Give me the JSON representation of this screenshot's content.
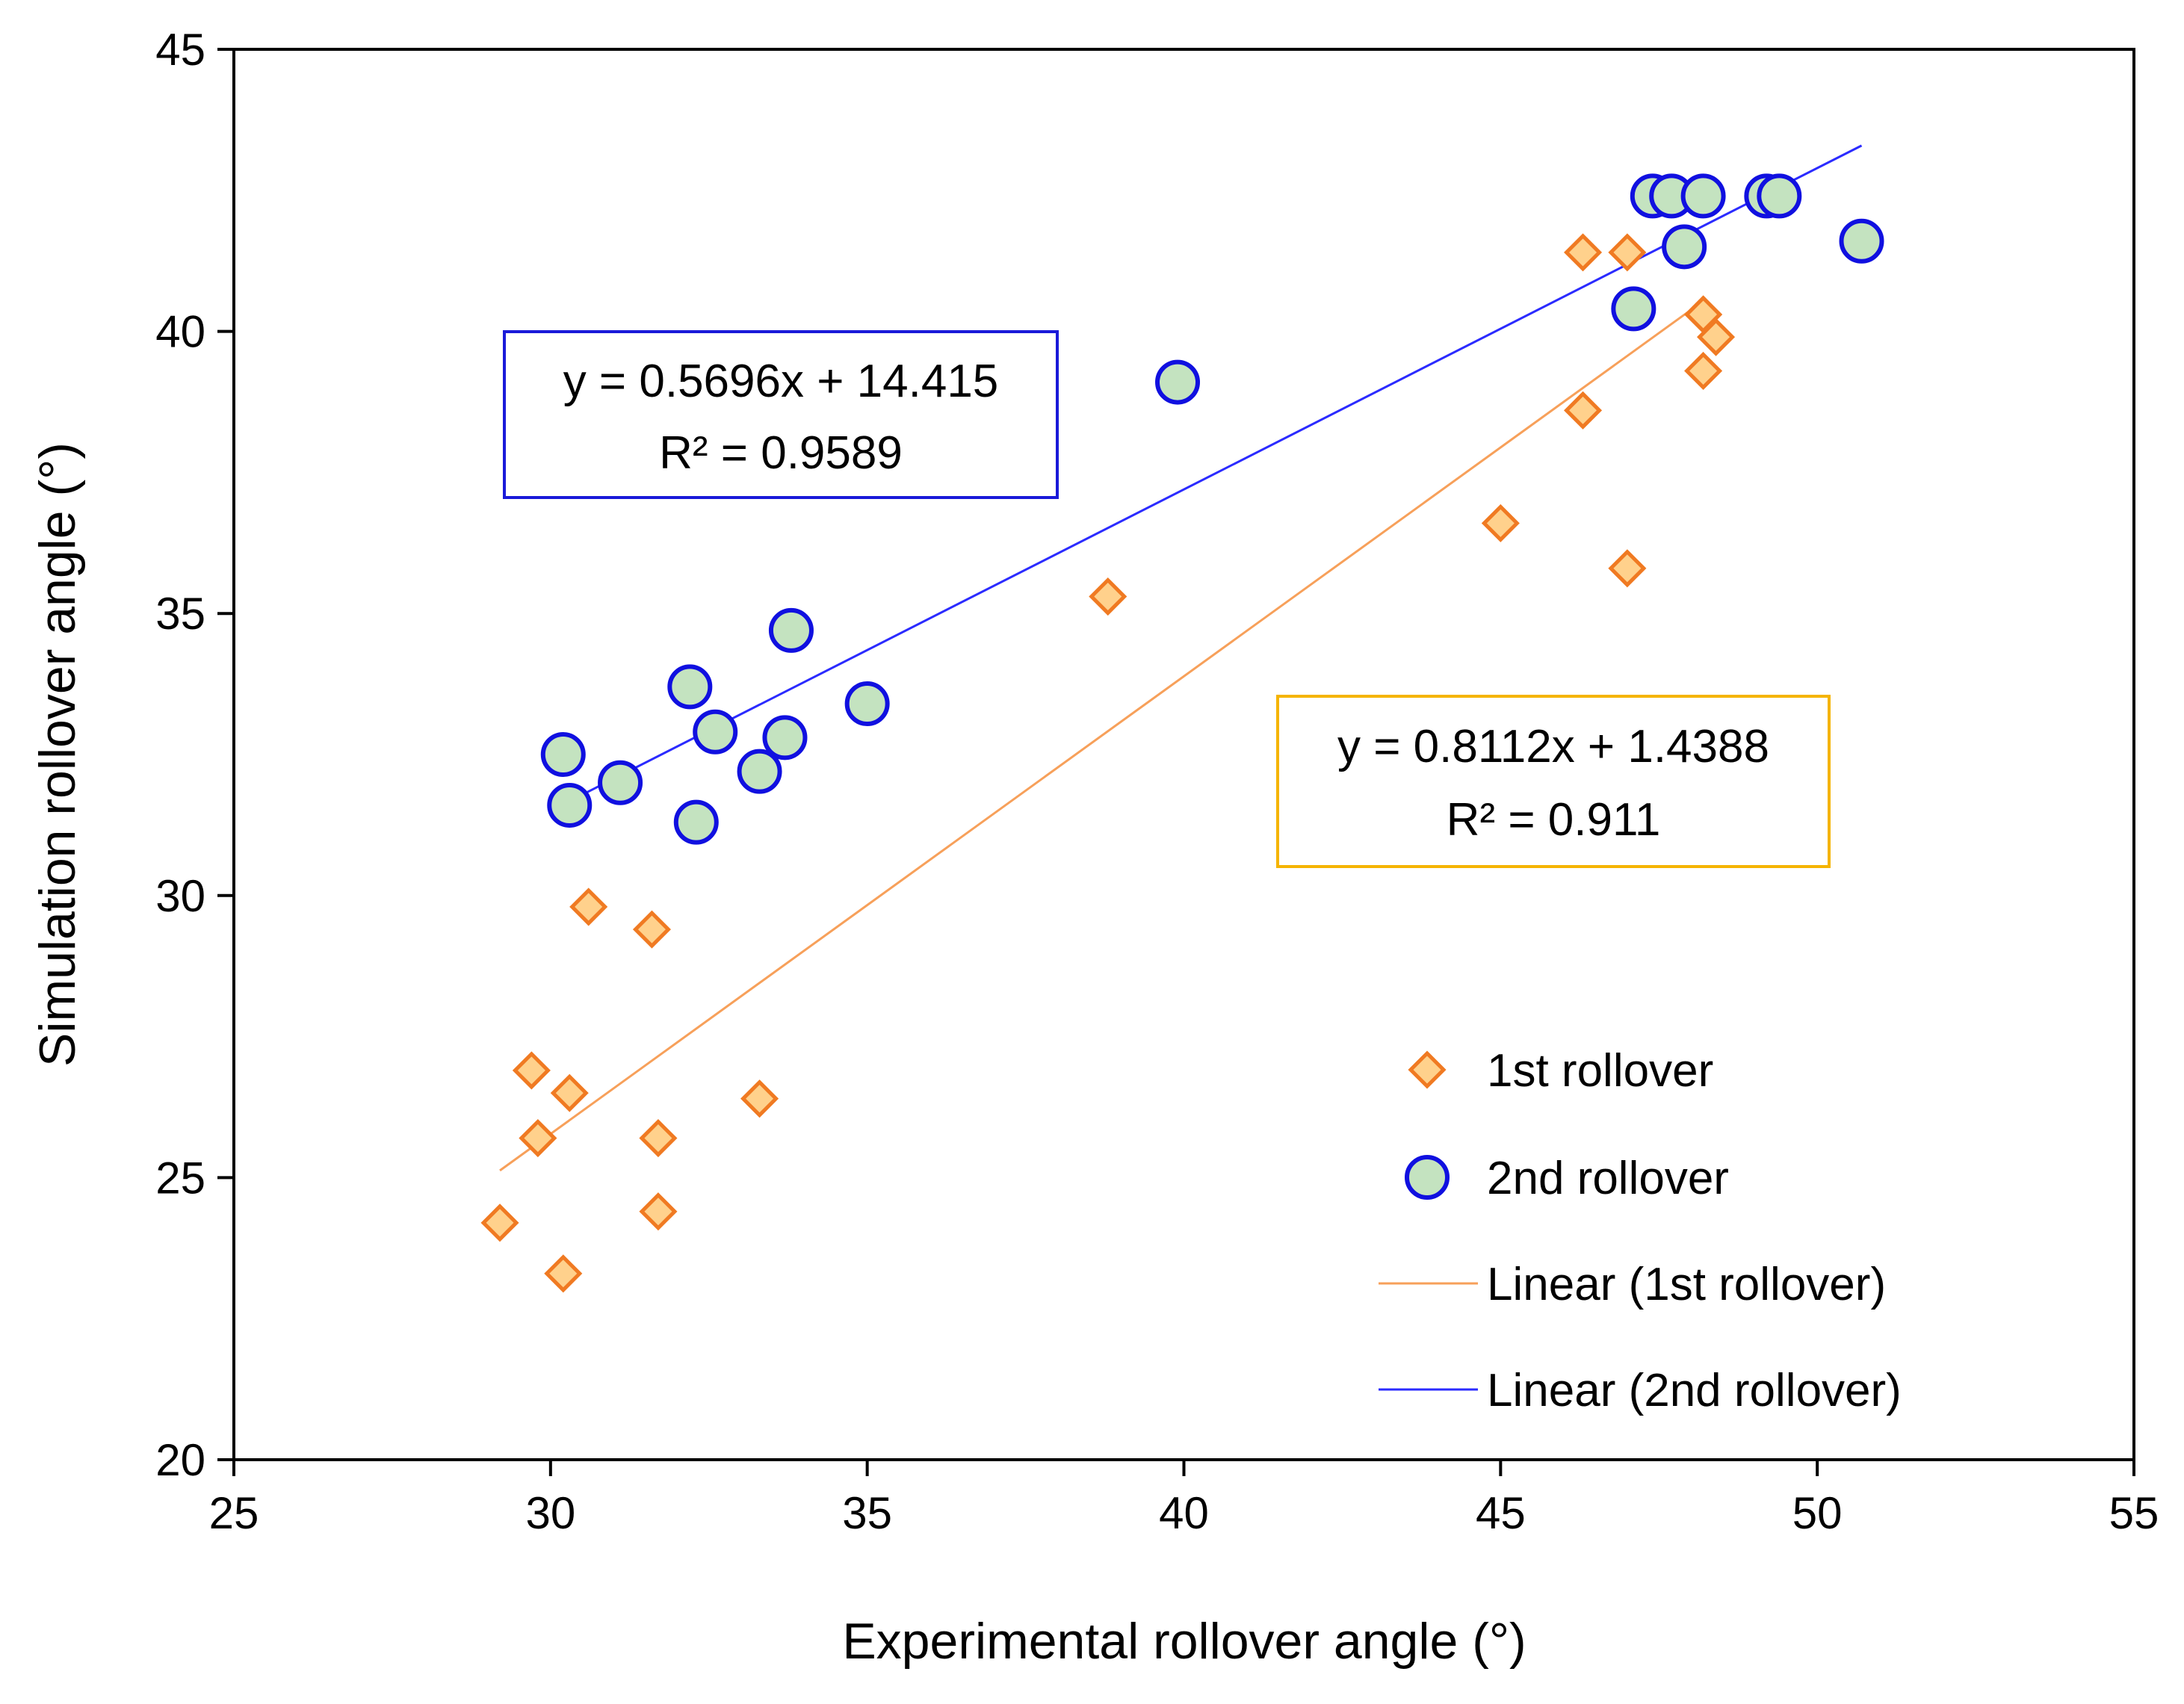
{
  "chart_data": {
    "type": "scatter",
    "title": "",
    "xlabel": "Experimental rollover angle (°)",
    "ylabel": "Simulation rollover angle (°)",
    "xlim": [
      25,
      55
    ],
    "ylim": [
      20,
      45
    ],
    "xticks": [
      "25",
      "30",
      "35",
      "40",
      "45",
      "50",
      "55"
    ],
    "yticks": [
      "20",
      "25",
      "30",
      "35",
      "40",
      "45"
    ],
    "grid": false,
    "legend_position": "bottom-right",
    "series": [
      {
        "name": "1st rollover",
        "marker": "diamond",
        "fill": "#ffd18c",
        "stroke": "#f07a22",
        "x": [
          29.2,
          30.2,
          29.8,
          30.3,
          29.7,
          30.6,
          31.6,
          31.7,
          31.7,
          33.3,
          38.8,
          45.0,
          46.3,
          46.3,
          47.0,
          47.0,
          48.2,
          48.2,
          48.2,
          48.4
        ],
        "y": [
          24.2,
          23.3,
          25.7,
          26.5,
          26.9,
          29.8,
          29.4,
          25.7,
          24.4,
          26.4,
          35.3,
          36.6,
          38.6,
          41.4,
          41.4,
          35.8,
          40.3,
          39.3,
          40.3,
          39.9
        ]
      },
      {
        "name": "2nd rollover",
        "marker": "circle",
        "fill": "#c4e3c0",
        "stroke": "#1010e0",
        "x": [
          30.2,
          30.3,
          31.1,
          32.2,
          32.6,
          32.3,
          33.3,
          33.7,
          33.8,
          35.0,
          39.9,
          47.1,
          47.4,
          47.7,
          47.9,
          48.2,
          49.2,
          49.4,
          50.7
        ],
        "y": [
          32.5,
          31.6,
          32.0,
          33.7,
          32.9,
          31.3,
          32.2,
          32.8,
          34.7,
          33.4,
          39.1,
          40.4,
          42.4,
          42.4,
          41.5,
          42.4,
          42.4,
          42.4,
          41.6
        ]
      },
      {
        "name": "Linear (1st rollover)",
        "type": "line",
        "color": "#f7a05a",
        "slope": 0.8112,
        "intercept": 1.4388,
        "x_range": [
          29.2,
          48.2
        ]
      },
      {
        "name": "Linear (2nd rollover)",
        "type": "line",
        "color": "#2b2bff",
        "slope": 0.5696,
        "intercept": 14.415,
        "x_range": [
          30.3,
          50.7
        ]
      }
    ],
    "annotations": [
      {
        "id": "eq2",
        "line1": "y = 0.5696x + 14.415",
        "line2": "R² = 0.9589",
        "border": "#1a1ad9"
      },
      {
        "id": "eq1",
        "line1": "y = 0.8112x + 1.4388",
        "line2": "R² = 0.911",
        "border": "#f5b400"
      }
    ]
  }
}
